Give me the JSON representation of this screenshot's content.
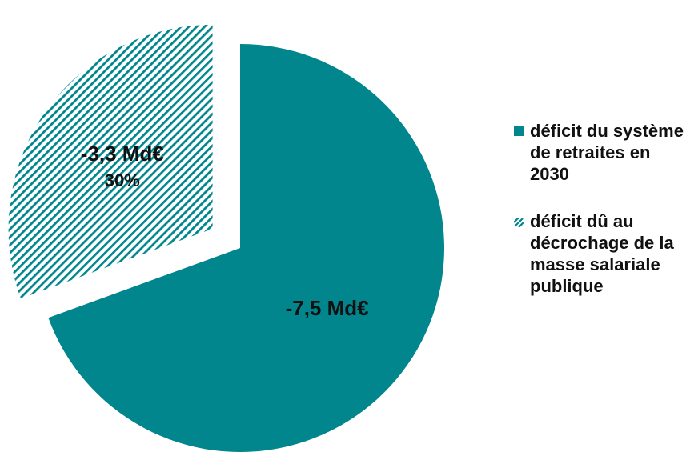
{
  "chart_data": {
    "type": "pie",
    "slices": [
      {
        "label": "déficit du système de retraites en 2030",
        "value_label": "-7,5 Md€",
        "value": 7.5,
        "percent_label": "",
        "pattern": "solid",
        "exploded": false
      },
      {
        "label": "déficit dû au décrochage de la masse salariale publique",
        "value_label": "-3,3 Md€",
        "value": 3.3,
        "percent_label": "30%",
        "pattern": "hatched",
        "exploded": true
      }
    ],
    "legend_position": "right",
    "colors": {
      "primary": "#00868c"
    }
  }
}
